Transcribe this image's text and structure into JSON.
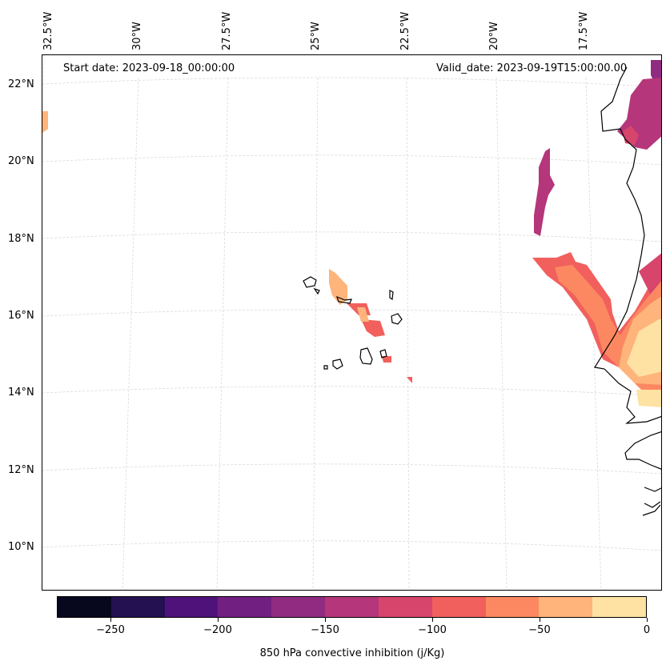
{
  "map": {
    "start_date": "Start date: 2023-09-18_00:00:00",
    "valid_date": "Valid_date: 2023-09-19T15:00:00.00",
    "lat_labels": [
      "22°N",
      "20°N",
      "18°N",
      "16°N",
      "14°N",
      "12°N",
      "10°N"
    ],
    "lon_labels": [
      "32.5°W",
      "30°W",
      "27.5°W",
      "25°W",
      "22.5°W",
      "20°W",
      "17.5°W"
    ],
    "variable": "850 hPa convective inhibition (j/Kg)"
  },
  "colorbar": {
    "label": "850 hPa convective inhibition (j/Kg)",
    "levels": [
      -275,
      -250,
      -225,
      -200,
      -175,
      -150,
      -125,
      -100,
      -75,
      -50,
      -25,
      0
    ],
    "tick_labels": [
      "−250",
      "−200",
      "−150",
      "−100",
      "−50",
      "0"
    ],
    "colors": [
      "#07071d",
      "#231151",
      "#4f127b",
      "#711f81",
      "#912b81",
      "#b5367a",
      "#d8456c",
      "#f1605d",
      "#fb8861",
      "#feb47b",
      "#fee2a3"
    ]
  }
}
